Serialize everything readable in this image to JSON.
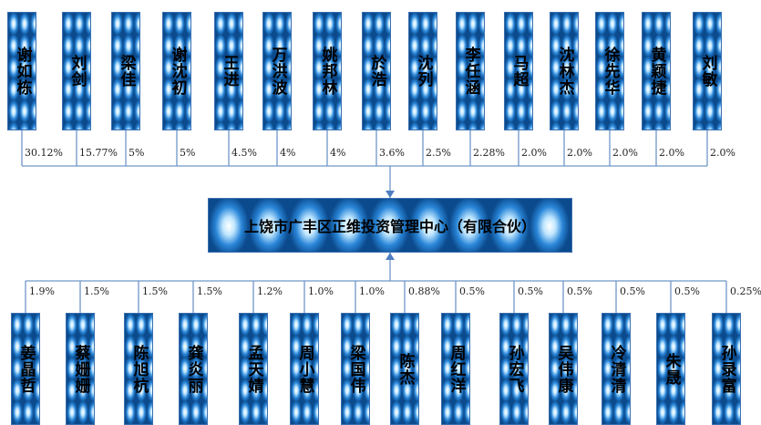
{
  "center": {
    "label": "上饶市广丰区正维投资管理中心（有限合伙）"
  },
  "top_shareholders": [
    {
      "name": "谢如栋",
      "pct": "30.12%"
    },
    {
      "name": "刘剑",
      "pct": "15.77%"
    },
    {
      "name": "梁佳",
      "pct": "5%"
    },
    {
      "name": "谢沈初",
      "pct": "5%"
    },
    {
      "name": "王进",
      "pct": "4.5%"
    },
    {
      "name": "万洪波",
      "pct": "4%"
    },
    {
      "name": "姚邦林",
      "pct": "4%"
    },
    {
      "name": "於浩",
      "pct": "3.6%"
    },
    {
      "name": "沈列",
      "pct": "2.5%"
    },
    {
      "name": "李任涵",
      "pct": "2.28%"
    },
    {
      "name": "马超",
      "pct": "2.0%"
    },
    {
      "name": "沈林杰",
      "pct": "2.0%"
    },
    {
      "name": "徐先华",
      "pct": "2.0%"
    },
    {
      "name": "黄颖捷",
      "pct": "2.0%"
    },
    {
      "name": "刘敏",
      "pct": "2.0%"
    }
  ],
  "bottom_shareholders": [
    {
      "name": "姜晶哲",
      "pct": "1.9%"
    },
    {
      "name": "蔡姗姗",
      "pct": "1.5%"
    },
    {
      "name": "陈旭杭",
      "pct": "1.5%"
    },
    {
      "name": "龚炎丽",
      "pct": "1.5%"
    },
    {
      "name": "孟天婧",
      "pct": "1.2%"
    },
    {
      "name": "周小慧",
      "pct": "1.0%"
    },
    {
      "name": "梁国伟",
      "pct": "1.0%"
    },
    {
      "name": "陈杰",
      "pct": "0.88%"
    },
    {
      "name": "周红洋",
      "pct": "0.5%"
    },
    {
      "name": "孙宏飞",
      "pct": "0.5%"
    },
    {
      "name": "吴伟康",
      "pct": "0.5%"
    },
    {
      "name": "冷清清",
      "pct": "0.5%"
    },
    {
      "name": "朱晟",
      "pct": "0.5%"
    },
    {
      "name": "孙录富",
      "pct": "0.25%"
    }
  ],
  "colors": {
    "line": "#6f96c8",
    "arrow": "#4f7fc0",
    "box_border": "#3a6fb0"
  }
}
